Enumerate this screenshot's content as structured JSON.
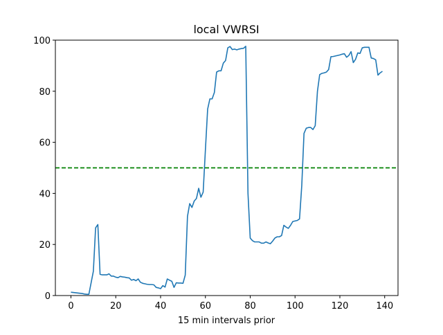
{
  "chart_data": {
    "type": "line",
    "title": "local VWRSI",
    "xlabel": "15 min intervals prior",
    "x": [
      0,
      1,
      2,
      3,
      4,
      5,
      6,
      7,
      8,
      9,
      10,
      11,
      12,
      13,
      14,
      15,
      16,
      17,
      18,
      19,
      20,
      21,
      22,
      23,
      24,
      25,
      26,
      27,
      28,
      29,
      30,
      31,
      32,
      33,
      34,
      35,
      36,
      37,
      38,
      39,
      40,
      41,
      42,
      43,
      44,
      45,
      46,
      47,
      48,
      49,
      50,
      51,
      52,
      53,
      54,
      55,
      56,
      57,
      58,
      59,
      60,
      61,
      62,
      63,
      64,
      65,
      66,
      67,
      68,
      69,
      70,
      71,
      72,
      73,
      74,
      75,
      76,
      77,
      78,
      79,
      80,
      81,
      82,
      83,
      84,
      85,
      86,
      87,
      88,
      89,
      90,
      91,
      92,
      93,
      94,
      95,
      96,
      97,
      98,
      99,
      100,
      101,
      102,
      103,
      104,
      105,
      106,
      107,
      108,
      109,
      110,
      111,
      112,
      113,
      114,
      115,
      116,
      117,
      118,
      119,
      120,
      121,
      122,
      123,
      124,
      125,
      126,
      127,
      128,
      129,
      130,
      131,
      132,
      133,
      134,
      135,
      136,
      137,
      138,
      139
    ],
    "series": [
      {
        "color": "#1f77b4",
        "values": [
          1.3,
          1.2,
          1.1,
          1.0,
          0.9,
          0.8,
          0.6,
          0.5,
          0.5,
          5,
          9.5,
          26.5,
          27.8,
          8.3,
          8.1,
          8.1,
          8.1,
          8.5,
          7.6,
          7.6,
          7.2,
          7.0,
          7.5,
          7.3,
          7.2,
          7.0,
          6.9,
          6.0,
          6.3,
          5.8,
          6.5,
          5.2,
          4.8,
          4.6,
          4.4,
          4.3,
          4.3,
          4.2,
          3.2,
          3.0,
          2.7,
          3.9,
          3.3,
          6.5,
          6.0,
          5.6,
          3.2,
          5.0,
          4.9,
          4.9,
          4.8,
          8.0,
          31,
          36,
          34.5,
          37,
          38,
          42,
          38.5,
          40.5,
          57,
          73,
          77,
          77,
          79.5,
          87.5,
          88,
          88,
          91,
          92,
          97,
          97.5,
          96.3,
          96.5,
          96.2,
          96.5,
          96.7,
          96.8,
          97.6,
          40,
          22.5,
          21.5,
          21,
          21,
          21,
          20.5,
          20.5,
          21,
          20.6,
          20.3,
          21.3,
          22.5,
          23,
          23,
          23.5,
          27.5,
          26.8,
          26.3,
          27.5,
          29,
          29.2,
          29.4,
          30,
          43,
          63.5,
          65.5,
          65.8,
          65.8,
          65,
          66.5,
          80,
          86.5,
          87,
          87.2,
          87.5,
          88.5,
          93.5,
          93.6,
          93.8,
          94,
          94.2,
          94.5,
          94.7,
          93.3,
          94,
          95.5,
          91.2,
          92.5,
          95,
          94.8,
          97,
          97.2,
          97.2,
          97.2,
          93,
          92.8,
          92.3,
          86.3,
          87.2,
          87.8
        ]
      }
    ],
    "threshold": {
      "value": 50,
      "color": "#008000"
    },
    "xlim": [
      -6.95,
      145.95
    ],
    "xticks": [
      0,
      20,
      40,
      60,
      80,
      100,
      120,
      140
    ],
    "ylim": [
      0,
      100
    ],
    "yticks": [
      0,
      20,
      40,
      60,
      80,
      100
    ]
  }
}
